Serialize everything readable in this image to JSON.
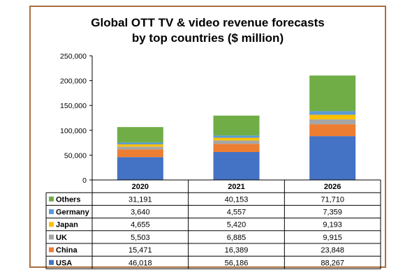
{
  "chart_data": {
    "type": "bar",
    "stacked": true,
    "title_line1": "Global OTT TV & video revenue forecasts",
    "title_line2": "by top countries ($ million)",
    "categories": [
      "2020",
      "2021",
      "2026"
    ],
    "yticks": [
      "0",
      "50,000",
      "100,000",
      "150,000",
      "200,000",
      "250,000"
    ],
    "ylim": [
      0,
      250000
    ],
    "grid": false,
    "legend": "data-table",
    "series": [
      {
        "name": "USA",
        "color": "#4472c4",
        "values": [
          46018,
          56186,
          88267
        ],
        "labels": [
          "46,018",
          "56,186",
          "88,267"
        ]
      },
      {
        "name": "China",
        "color": "#ed7d31",
        "values": [
          15471,
          16389,
          23848
        ],
        "labels": [
          "15,471",
          "16,389",
          "23,848"
        ]
      },
      {
        "name": "UK",
        "color": "#a5a5a5",
        "values": [
          5503,
          6885,
          9915
        ],
        "labels": [
          "5,503",
          "6,885",
          "9,915"
        ]
      },
      {
        "name": "Japan",
        "color": "#ffc000",
        "values": [
          4655,
          5420,
          9193
        ],
        "labels": [
          "4,655",
          "5,420",
          "9,193"
        ]
      },
      {
        "name": "Germany",
        "color": "#5b9bd5",
        "values": [
          3640,
          4557,
          7359
        ],
        "labels": [
          "3,640",
          "4,557",
          "7,359"
        ]
      },
      {
        "name": "Others",
        "color": "#70ad47",
        "values": [
          31191,
          40153,
          71710
        ],
        "labels": [
          "31,191",
          "40,153",
          "71,710"
        ]
      }
    ]
  }
}
